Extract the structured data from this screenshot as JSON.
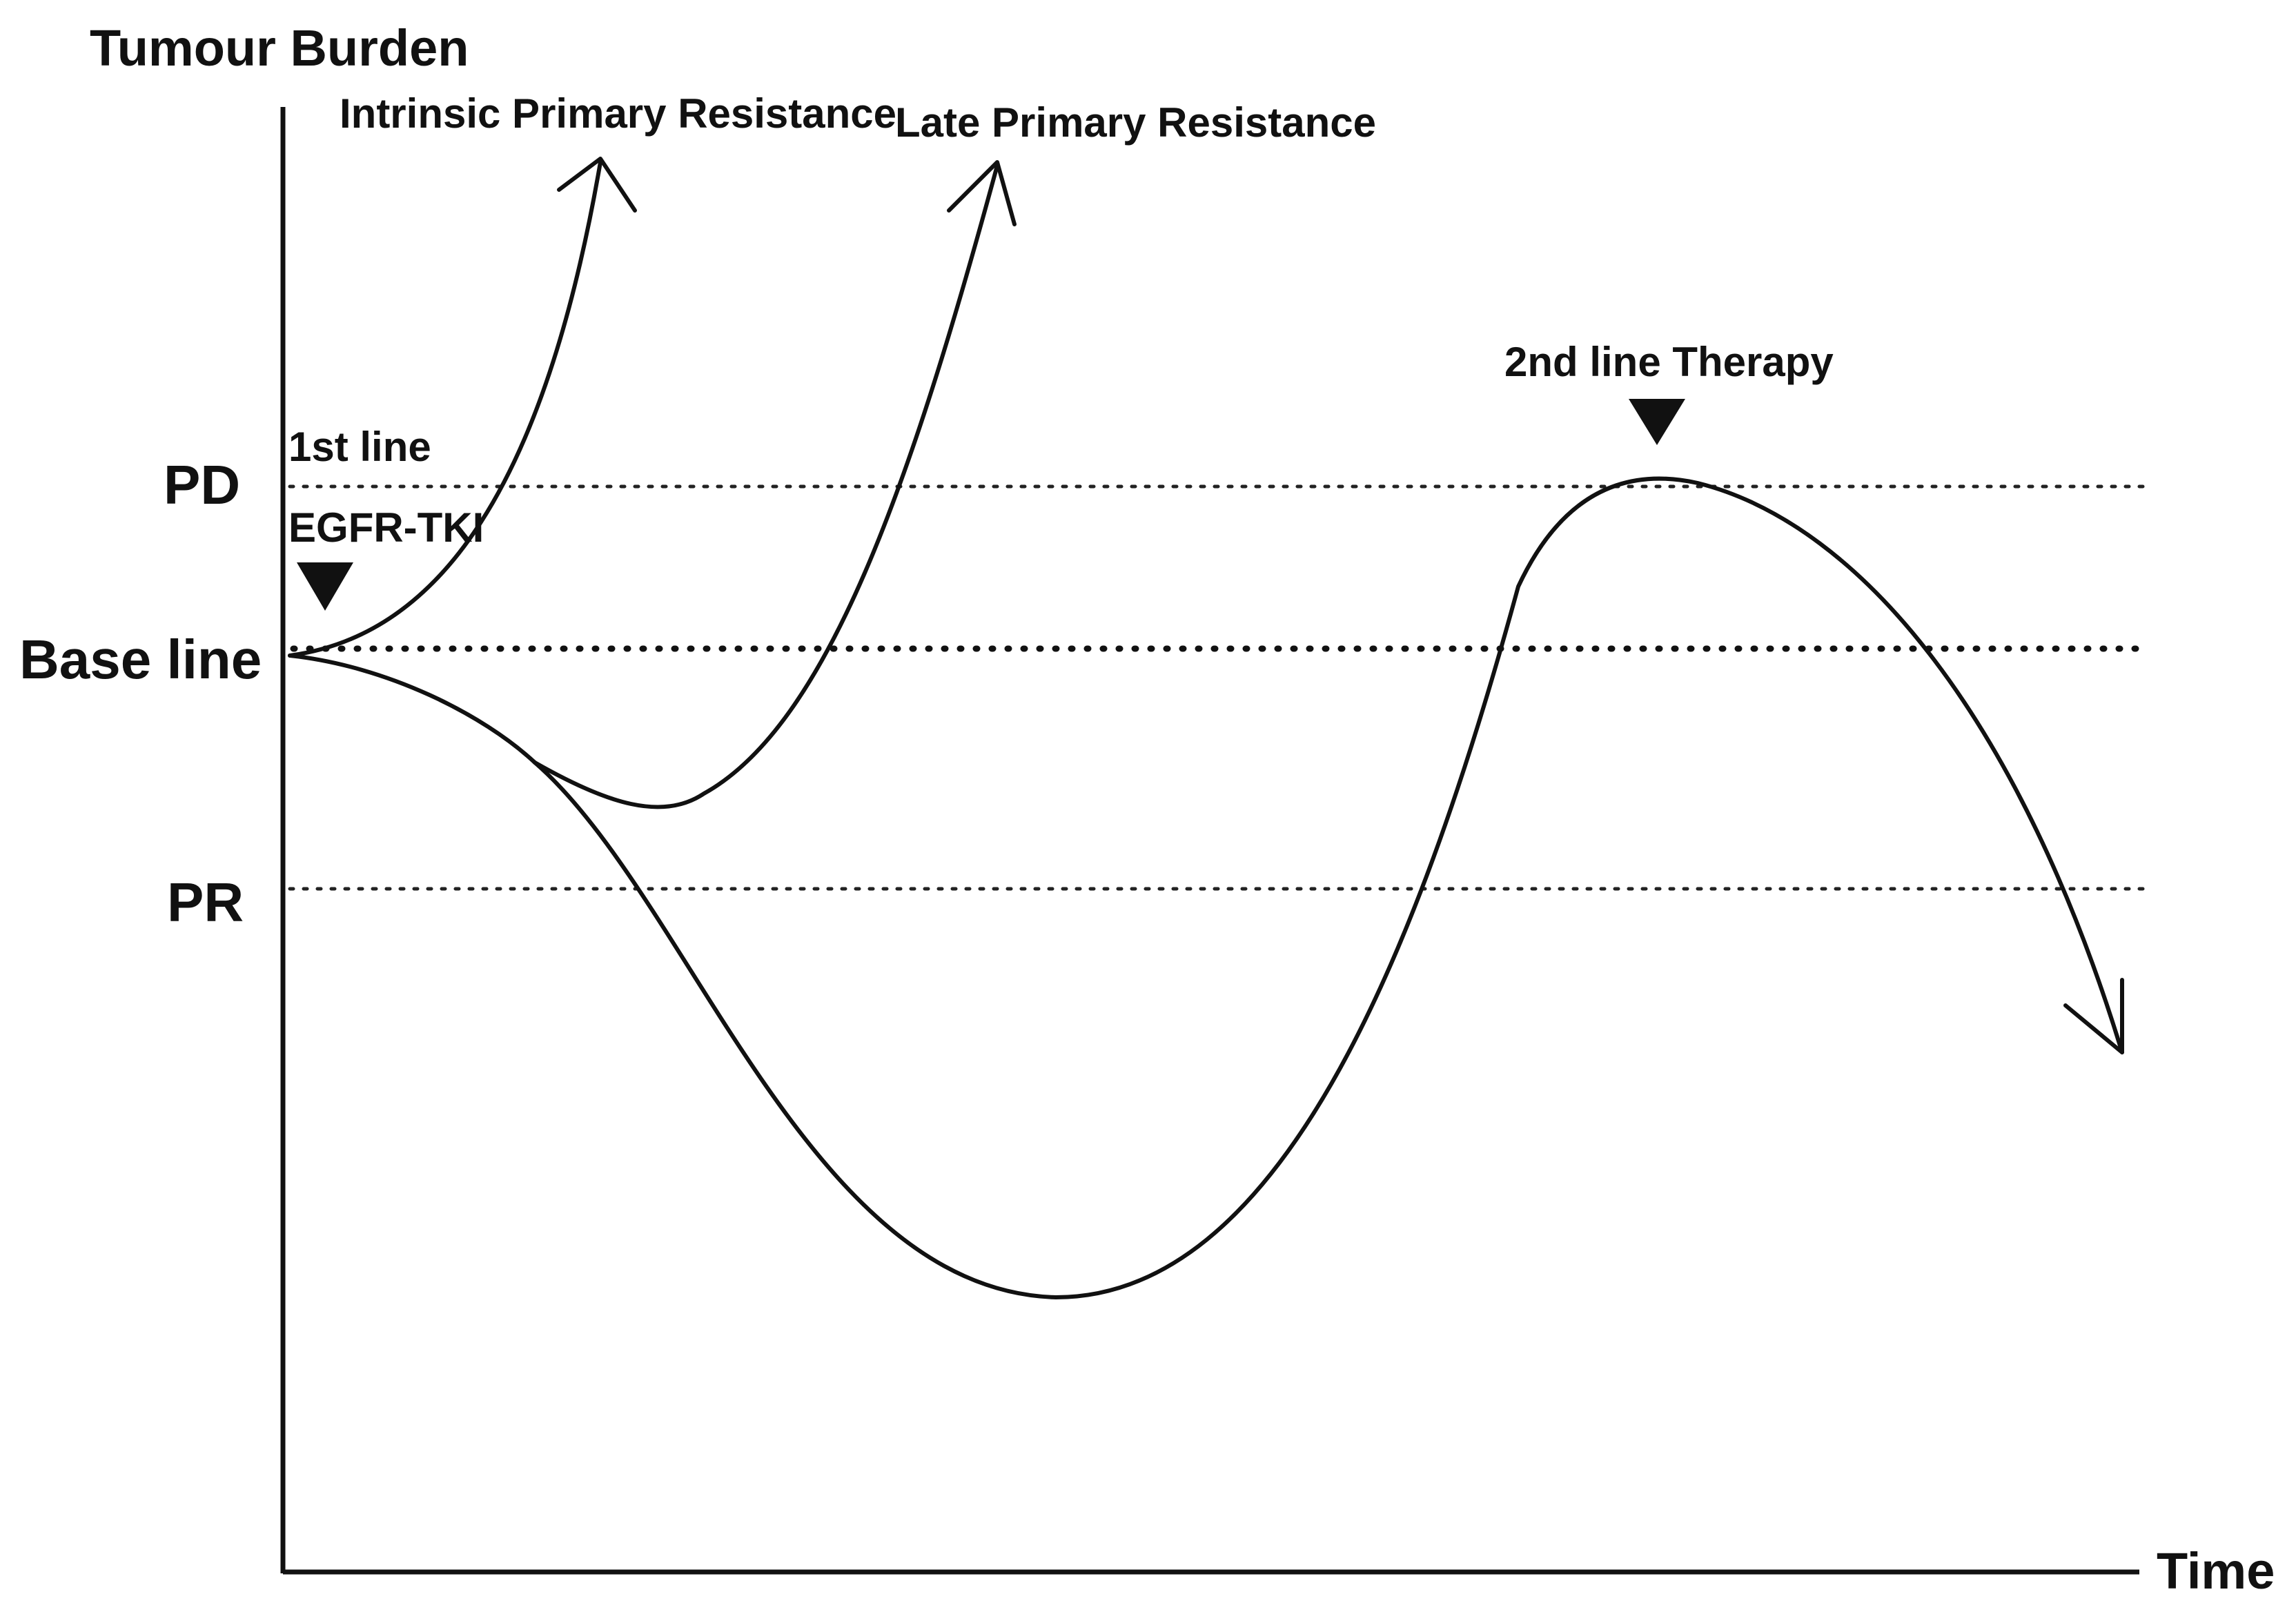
{
  "axes": {
    "y_title": "Tumour Burden",
    "x_title": "Time"
  },
  "levels": {
    "pd": "PD",
    "baseline": "Base line",
    "pr": "PR"
  },
  "markers": {
    "first_line": {
      "line1": "1st line",
      "line2": "EGFR-TKI"
    },
    "second_line": "2nd line Therapy"
  },
  "curves": {
    "intrinsic": "Intrinsic Primary Resistance",
    "late": "Late Primary Resistance"
  },
  "colors": {
    "ink": "#111111",
    "background": "#ffffff"
  }
}
